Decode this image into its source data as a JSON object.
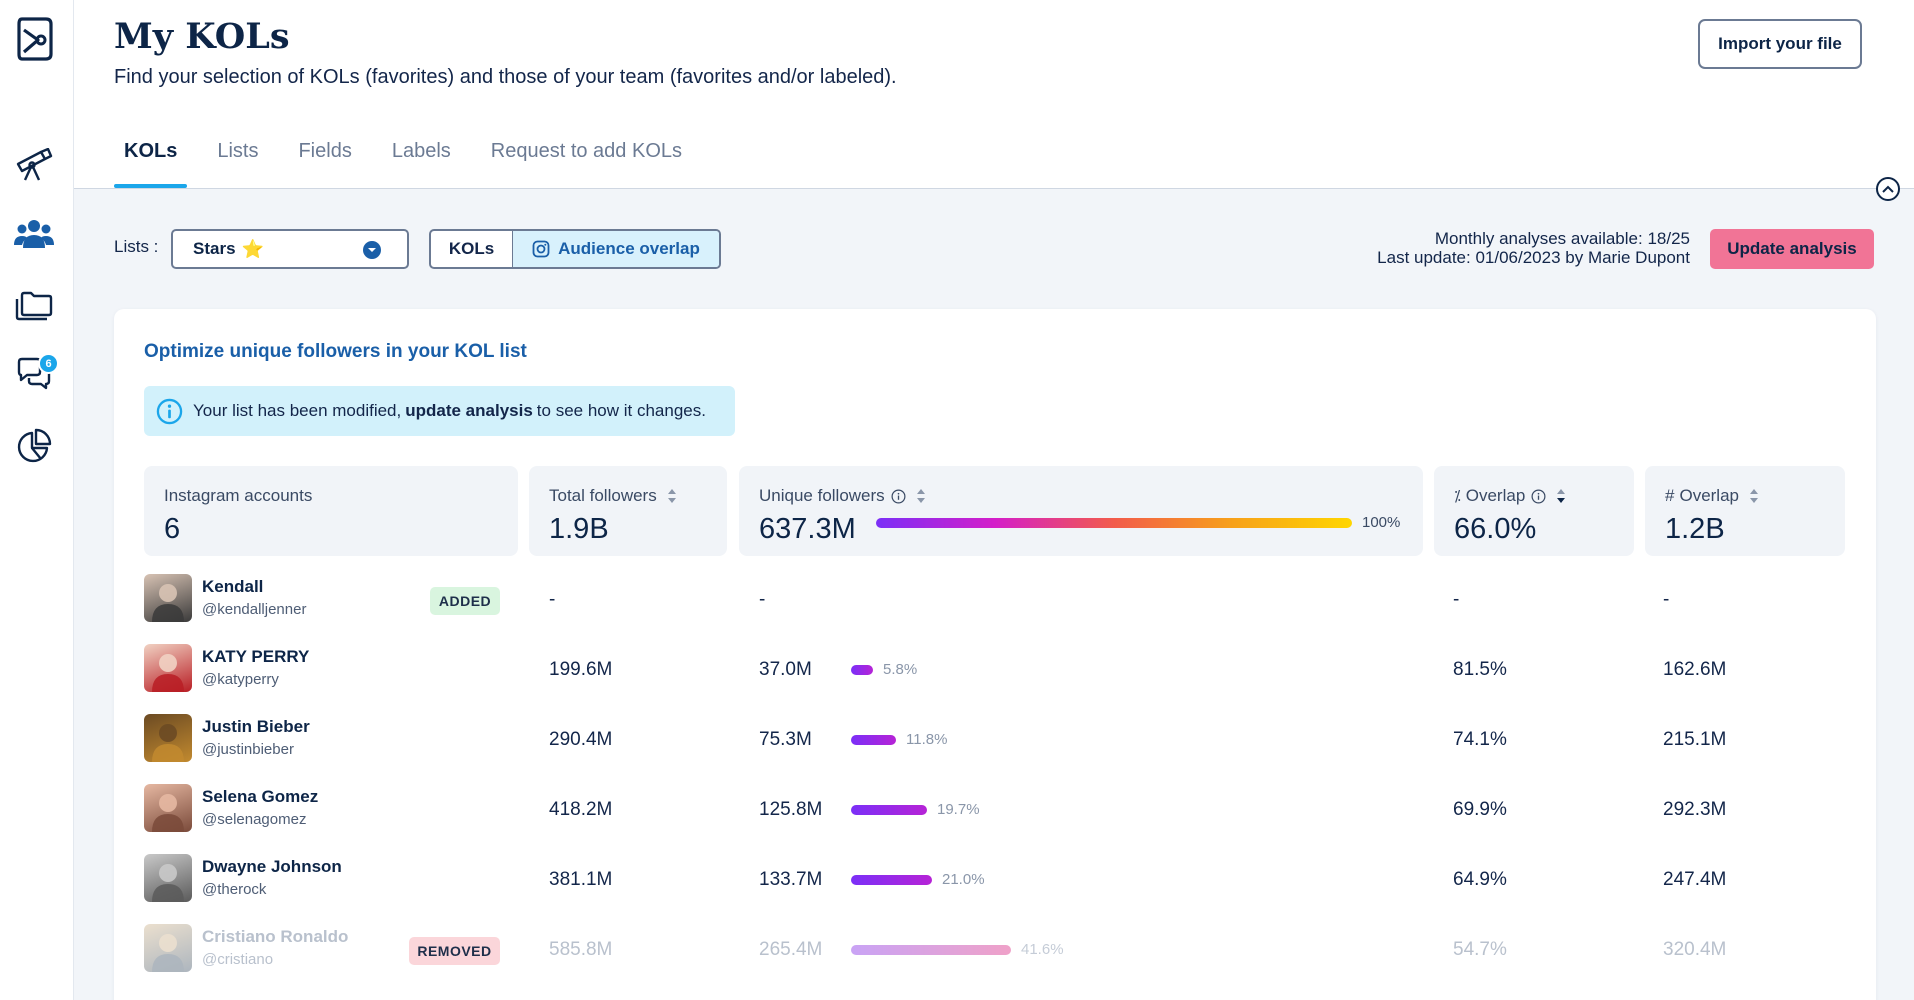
{
  "header": {
    "title": "My KOLs",
    "subtitle": "Find your selection of KOLs (favorites) and those of your team (favorites and/or labeled).",
    "import_label": "Import your file"
  },
  "sidebar": {
    "badge_count": "6",
    "items": [
      "telescope-icon",
      "users-icon",
      "folders-icon",
      "chat-icon",
      "pie-chart-icon"
    ]
  },
  "tabs": [
    {
      "label": "KOLs",
      "active": true
    },
    {
      "label": "Lists",
      "active": false
    },
    {
      "label": "Fields",
      "active": false
    },
    {
      "label": "Labels",
      "active": false
    },
    {
      "label": "Request to add KOLs",
      "active": false
    }
  ],
  "filters": {
    "lists_label": "Lists :",
    "selected_list": "Stars",
    "toggle_kols": "KOLs",
    "toggle_overlap": "Audience overlap"
  },
  "analysis": {
    "monthly": "Monthly analyses available: 18/25",
    "last_update": "Last update: 01/06/2023 by Marie Dupont",
    "update_label": "Update analysis"
  },
  "card": {
    "title": "Optimize unique followers in your KOL list",
    "info_pre": "Your list has been modified,",
    "info_bold": "update analysis",
    "info_post": "to see how it changes."
  },
  "summary": {
    "accounts_label": "Instagram accounts",
    "accounts_value": "6",
    "total_label": "Total followers",
    "total_value": "1.9B",
    "unique_label": "Unique followers",
    "unique_value": "637.3M",
    "unique_pct": "100%",
    "overlap_pct_label": "Overlap",
    "overlap_pct_value": "66.0%",
    "overlap_num_label": "Overlap",
    "overlap_num_value": "1.2B"
  },
  "colors": {
    "accent": "#1ba6ea",
    "primary": "#1a5fa8",
    "update_button": "#f17496",
    "bar_start": "#7b2ff7",
    "bar_end": "#ffd600"
  },
  "rows": [
    {
      "name": "Kendall",
      "handle": "@kendalljenner",
      "status": "ADDED",
      "total": "-",
      "unique": "-",
      "unique_pct": "",
      "unique_frac": 0,
      "overlap_pct": "-",
      "overlap_num": "-",
      "faded": false
    },
    {
      "name": "KATY PERRY",
      "handle": "@katyperry",
      "status": "",
      "total": "199.6M",
      "unique": "37.0M",
      "unique_pct": "5.8%",
      "unique_frac": 0.058,
      "overlap_pct": "81.5%",
      "overlap_num": "162.6M",
      "faded": false
    },
    {
      "name": "Justin Bieber",
      "handle": "@justinbieber",
      "status": "",
      "total": "290.4M",
      "unique": "75.3M",
      "unique_pct": "11.8%",
      "unique_frac": 0.118,
      "overlap_pct": "74.1%",
      "overlap_num": "215.1M",
      "faded": false
    },
    {
      "name": "Selena Gomez",
      "handle": "@selenagomez",
      "status": "",
      "total": "418.2M",
      "unique": "125.8M",
      "unique_pct": "19.7%",
      "unique_frac": 0.197,
      "overlap_pct": "69.9%",
      "overlap_num": "292.3M",
      "faded": false
    },
    {
      "name": "Dwayne Johnson",
      "handle": "@therock",
      "status": "",
      "total": "381.1M",
      "unique": "133.7M",
      "unique_pct": "21.0%",
      "unique_frac": 0.21,
      "overlap_pct": "64.9%",
      "overlap_num": "247.4M",
      "faded": false
    },
    {
      "name": "Cristiano Ronaldo",
      "handle": "@cristiano",
      "status": "REMOVED",
      "total": "585.8M",
      "unique": "265.4M",
      "unique_pct": "41.6%",
      "unique_frac": 0.416,
      "overlap_pct": "54.7%",
      "overlap_num": "320.4M",
      "faded": true
    }
  ]
}
